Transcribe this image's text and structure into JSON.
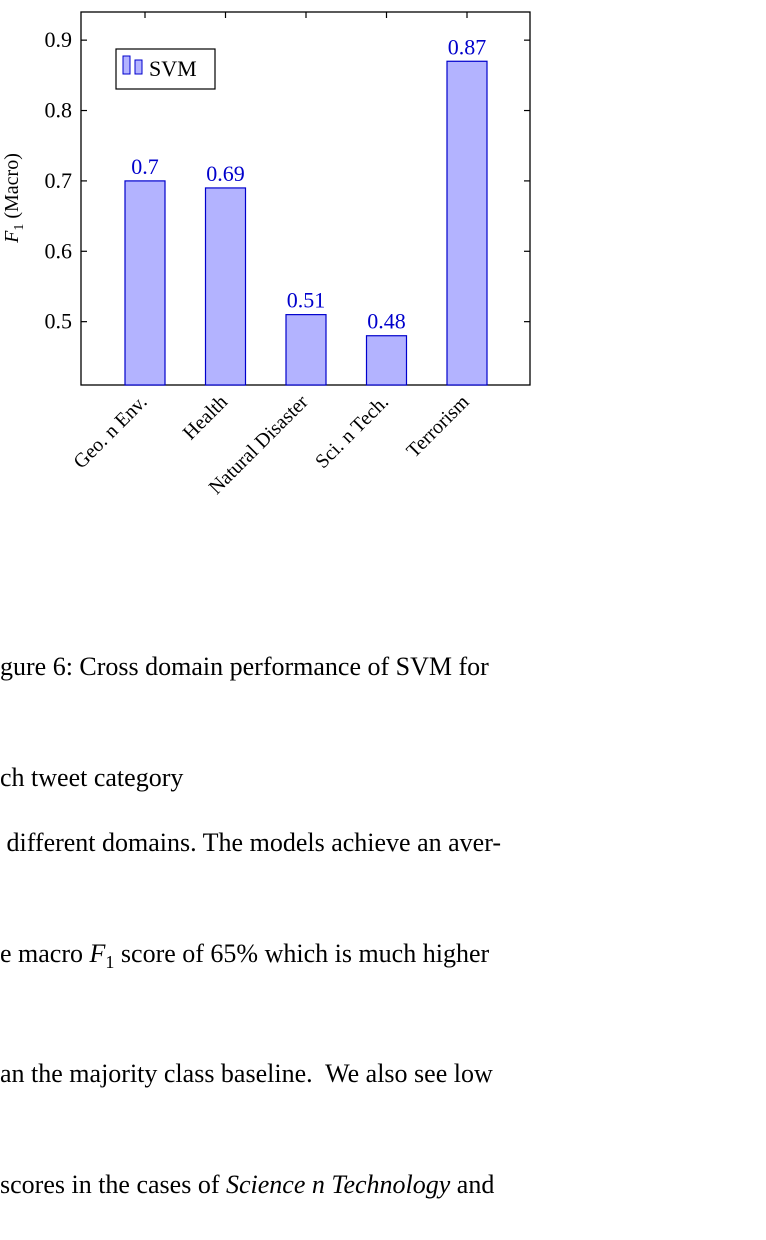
{
  "chart_data": {
    "type": "bar",
    "categories": [
      "Geo. n Env.",
      "Health",
      "Natural Disaster",
      "Sci. n Tech.",
      "Terrorism"
    ],
    "series": [
      {
        "name": "SVM",
        "values": [
          0.7,
          0.69,
          0.51,
          0.48,
          0.87
        ]
      }
    ],
    "data_labels": [
      "0.7",
      "0.69",
      "0.51",
      "0.48",
      "0.87"
    ],
    "ylabel_main": "F",
    "ylabel_sub": "1",
    "ylabel_rest": " (Macro)",
    "ylim": [
      0.41,
      0.94
    ],
    "yticks": [
      0.5,
      0.6,
      0.7,
      0.8,
      0.9
    ],
    "ytick_labels": [
      "0.5",
      "0.6",
      "0.7",
      "0.8",
      "0.9"
    ],
    "legend_position": "top-left",
    "grid": false,
    "colors": {
      "bar_fill": "#b3b3ff",
      "bar_stroke": "#0000cc",
      "label": "#0000cc"
    }
  },
  "caption": {
    "line1": "gure 6: Cross domain performance of SVM for",
    "line2": "ch tweet category"
  },
  "paragraph": {
    "line1": " different domains. The models achieve an aver-",
    "line2": "e macro F1 score of 65% which is much higher",
    "line3": "an the majority class baseline.  We also see low",
    "line4": "scores in the cases of Science n Technology and"
  }
}
